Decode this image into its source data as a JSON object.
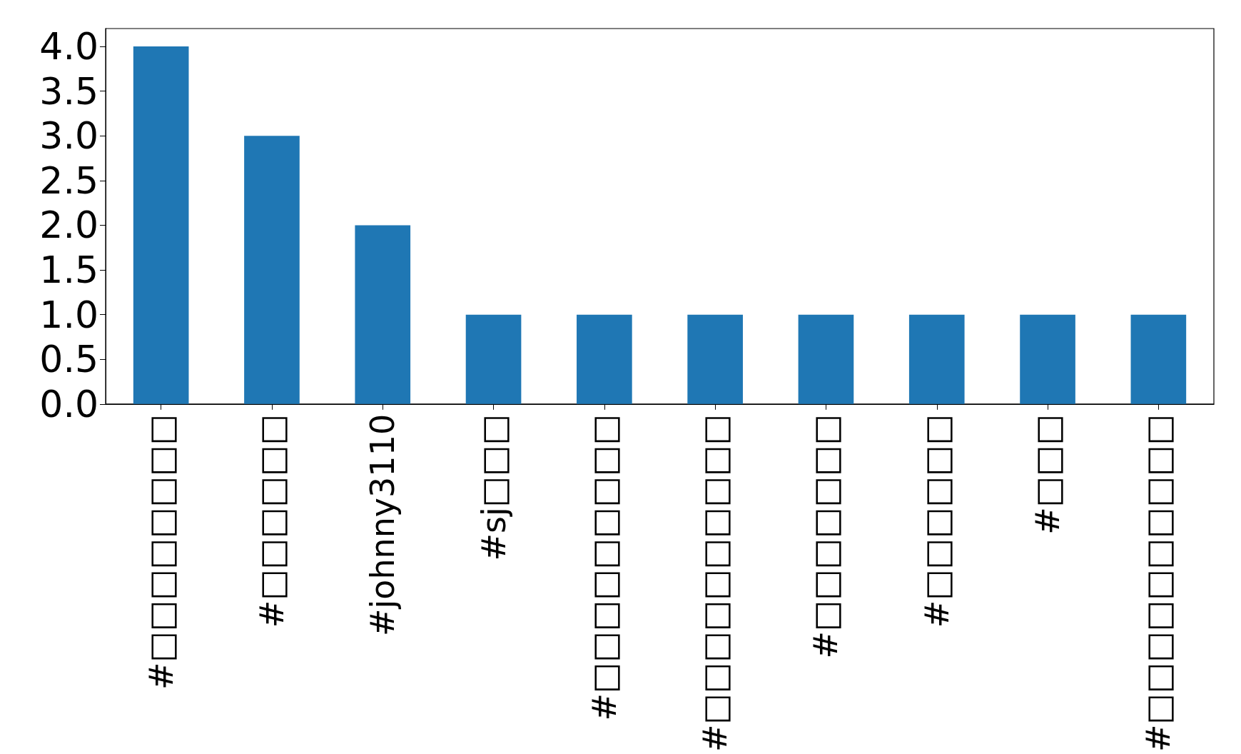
{
  "chart_data": {
    "type": "bar",
    "categories": [
      "#□□□□□□□□",
      "#□□□□□□",
      "#johnny3110",
      "#sj□□□",
      "#□□□□□□□□□",
      "#□□□□□□□□□□",
      "#□□□□□□□",
      "#□□□□□□",
      "#□□□",
      "#□□□□□□□□□□"
    ],
    "values": [
      4,
      3,
      2,
      1,
      1,
      1,
      1,
      1,
      1,
      1
    ],
    "color": "#1f77b4",
    "ylim": [
      0,
      4.2
    ],
    "yticks": [
      {
        "value": 0,
        "label": "0.0"
      },
      {
        "value": 0.5,
        "label": "0.5"
      },
      {
        "value": 1,
        "label": "1.0"
      },
      {
        "value": 1.5,
        "label": "1.5"
      },
      {
        "value": 2,
        "label": "2.0"
      },
      {
        "value": 2.5,
        "label": "2.5"
      },
      {
        "value": 3,
        "label": "3.0"
      },
      {
        "value": 3.5,
        "label": "3.5"
      },
      {
        "value": 4,
        "label": "4.0"
      }
    ],
    "grid": false
  }
}
